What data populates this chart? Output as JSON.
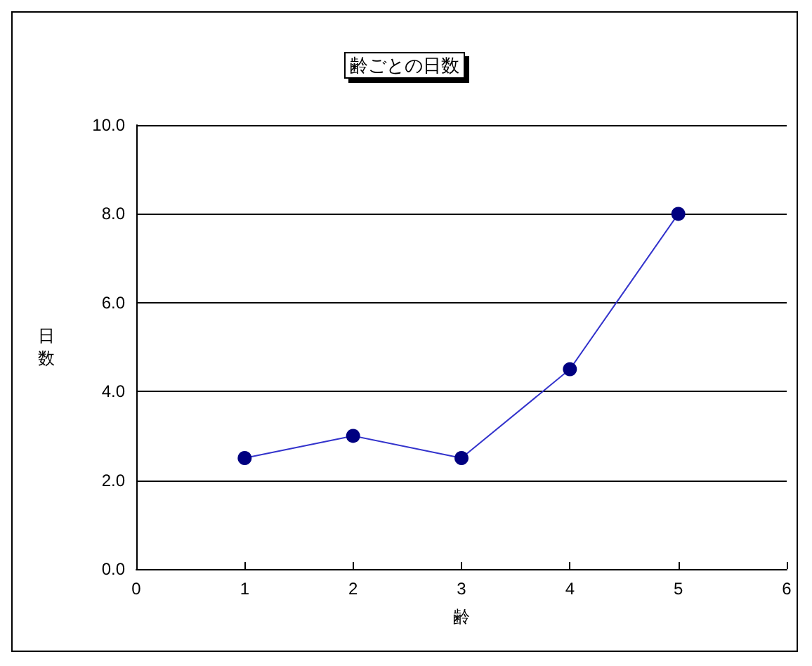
{
  "chart_data": {
    "type": "line",
    "title": "齢ごとの日数",
    "xlabel": "齢",
    "ylabel": "日数",
    "x": [
      1,
      2,
      3,
      4,
      5
    ],
    "series": [
      {
        "color": "#000080",
        "values": [
          2.5,
          3.0,
          2.5,
          4.5,
          8.0
        ]
      }
    ],
    "xlim": [
      0,
      6
    ],
    "xticks": [
      0,
      1,
      2,
      3,
      4,
      5,
      6
    ],
    "ylim": [
      0,
      10
    ],
    "yticks": [
      {
        "value": 0,
        "label": "0.0"
      },
      {
        "value": 2,
        "label": "2.0"
      },
      {
        "value": 4,
        "label": "4.0"
      },
      {
        "value": 6,
        "label": "6.0"
      },
      {
        "value": 8,
        "label": "8.0"
      },
      {
        "value": 10,
        "label": "10.0"
      }
    ],
    "grid": "y",
    "marker": "circle",
    "line_style": "solid"
  }
}
